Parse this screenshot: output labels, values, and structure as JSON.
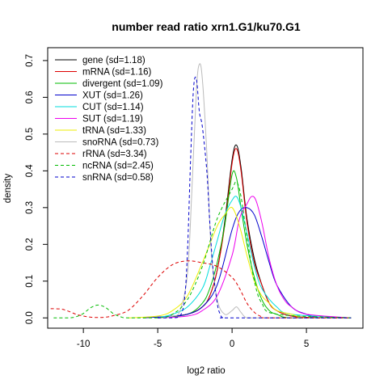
{
  "chart_data": {
    "type": "line",
    "title": "number read ratio xrn1.G1/ku70.G1",
    "xlabel": "log2 ratio",
    "ylabel": "density",
    "xlim": [
      -12.4,
      8.8
    ],
    "ylim": [
      -0.028,
      0.735
    ],
    "xticks": [
      -10,
      -5,
      0,
      5
    ],
    "yticks": [
      0.0,
      0.1,
      0.2,
      0.3,
      0.4,
      0.5,
      0.6,
      0.7
    ],
    "grid": false,
    "legend_position": "top-left",
    "series": [
      {
        "name": "gene (sd=1.18)",
        "color": "#000000",
        "dash": "solid",
        "x": [
          -5,
          -3,
          -2,
          -1.5,
          -1,
          -0.5,
          0,
          0.3,
          0.6,
          1,
          1.5,
          2,
          2.5,
          3,
          4,
          6,
          8
        ],
        "y": [
          0,
          0.01,
          0.03,
          0.06,
          0.13,
          0.26,
          0.43,
          0.47,
          0.41,
          0.27,
          0.16,
          0.09,
          0.04,
          0.02,
          0.005,
          0,
          0
        ]
      },
      {
        "name": "mRNA (sd=1.16)",
        "color": "#dd0000",
        "dash": "solid",
        "x": [
          -5,
          -3,
          -2,
          -1.5,
          -1,
          -0.5,
          0,
          0.3,
          0.6,
          1,
          1.5,
          2,
          2.5,
          3,
          4,
          6,
          8
        ],
        "y": [
          0,
          0.01,
          0.03,
          0.06,
          0.13,
          0.25,
          0.42,
          0.46,
          0.4,
          0.26,
          0.15,
          0.09,
          0.04,
          0.02,
          0.005,
          0,
          0
        ]
      },
      {
        "name": "divergent (sd=1.09)",
        "color": "#00bb00",
        "dash": "solid",
        "x": [
          -5,
          -3,
          -2,
          -1.5,
          -1,
          -0.5,
          0,
          0.3,
          0.6,
          1,
          1.5,
          2,
          2.5,
          3,
          4,
          8
        ],
        "y": [
          0,
          0.01,
          0.04,
          0.08,
          0.15,
          0.25,
          0.39,
          0.38,
          0.3,
          0.2,
          0.11,
          0.05,
          0.02,
          0.01,
          0,
          0
        ]
      },
      {
        "name": "XUT (sd=1.26)",
        "color": "#0000cc",
        "dash": "solid",
        "x": [
          -6,
          -4,
          -3,
          -2,
          -1,
          0,
          0.5,
          1,
          1.5,
          2,
          2.5,
          3,
          4,
          5,
          6,
          8
        ],
        "y": [
          0,
          0.005,
          0.01,
          0.03,
          0.09,
          0.24,
          0.29,
          0.3,
          0.28,
          0.22,
          0.15,
          0.09,
          0.03,
          0.01,
          0,
          0
        ]
      },
      {
        "name": "CUT (sd=1.14)",
        "color": "#00dddd",
        "dash": "solid",
        "x": [
          -5,
          -4,
          -3,
          -2,
          -1.5,
          -1,
          -0.5,
          0,
          0.3,
          0.6,
          1,
          1.5,
          2,
          3,
          4,
          8
        ],
        "y": [
          0,
          0.01,
          0.03,
          0.08,
          0.14,
          0.21,
          0.28,
          0.32,
          0.33,
          0.3,
          0.23,
          0.14,
          0.08,
          0.03,
          0.01,
          0
        ]
      },
      {
        "name": "SUT (sd=1.19)",
        "color": "#ee00ee",
        "dash": "solid",
        "x": [
          -5,
          -3,
          -2,
          -1,
          0,
          0.5,
          1,
          1.3,
          1.6,
          2,
          2.5,
          3,
          3.5,
          4,
          5,
          8
        ],
        "y": [
          0,
          0.005,
          0.02,
          0.06,
          0.17,
          0.27,
          0.31,
          0.33,
          0.32,
          0.26,
          0.16,
          0.09,
          0.05,
          0.03,
          0.01,
          0
        ]
      },
      {
        "name": "tRNA (sd=1.33)",
        "color": "#eeee00",
        "dash": "solid",
        "x": [
          -7,
          -5,
          -4,
          -3,
          -2,
          -1,
          -0.5,
          0,
          0.5,
          1,
          1.5,
          2,
          2.5,
          3,
          4,
          5,
          8
        ],
        "y": [
          0,
          0.005,
          0.02,
          0.06,
          0.15,
          0.25,
          0.28,
          0.3,
          0.25,
          0.17,
          0.1,
          0.06,
          0.04,
          0.02,
          0.01,
          0,
          0
        ]
      },
      {
        "name": "snoRNA (sd=0.73)",
        "color": "#bbbbbb",
        "dash": "solid",
        "x": [
          -5,
          -4,
          -3.5,
          -3,
          -2.7,
          -2.4,
          -2.2,
          -2,
          -1.7,
          -1.4,
          -1,
          -0.5,
          0,
          0.3,
          0.6,
          1,
          2,
          8
        ],
        "y": [
          0,
          0.005,
          0.02,
          0.12,
          0.35,
          0.62,
          0.69,
          0.65,
          0.45,
          0.18,
          0.05,
          0.01,
          0.02,
          0.03,
          0.015,
          0,
          0,
          0
        ]
      },
      {
        "name": "rRNA (sd=3.34)",
        "color": "#dd0000",
        "dash": "dashed",
        "x": [
          -12.2,
          -11.5,
          -11,
          -10.5,
          -10,
          -9.5,
          -9,
          -8.5,
          -8,
          -7,
          -6,
          -5,
          -4,
          -3,
          -2,
          -1,
          0,
          0.5,
          1,
          1.5,
          2,
          2.5,
          8
        ],
        "y": [
          0.025,
          0.024,
          0.018,
          0.01,
          0.005,
          0.002,
          0.001,
          0.002,
          0.006,
          0.02,
          0.06,
          0.11,
          0.145,
          0.155,
          0.15,
          0.14,
          0.11,
          0.08,
          0.04,
          0.015,
          0.003,
          0,
          0
        ]
      },
      {
        "name": "ncRNA (sd=2.45)",
        "color": "#00bb00",
        "dash": "dashed",
        "x": [
          -12,
          -11,
          -10.5,
          -10,
          -9.5,
          -9,
          -8.5,
          -8,
          -7.5,
          -7,
          -5,
          -4,
          -3,
          -2,
          -1,
          0,
          0.3,
          0.6,
          1,
          1.5,
          2,
          3,
          8
        ],
        "y": [
          0,
          0,
          0.003,
          0.012,
          0.028,
          0.035,
          0.028,
          0.012,
          0.003,
          0,
          0,
          0.01,
          0.05,
          0.14,
          0.27,
          0.35,
          0.37,
          0.33,
          0.22,
          0.1,
          0.04,
          0.01,
          0
        ]
      },
      {
        "name": "snRNA (sd=0.58)",
        "color": "#0000cc",
        "dash": "dashed",
        "x": [
          -5,
          -4,
          -3.5,
          -3.2,
          -3,
          -2.8,
          -2.6,
          -2.4,
          -2.2,
          -2,
          -1.7,
          -1.5,
          -1.3,
          -1,
          -0.8,
          -0.6,
          0,
          8
        ],
        "y": [
          0,
          0,
          0.005,
          0.05,
          0.18,
          0.42,
          0.62,
          0.65,
          0.56,
          0.52,
          0.4,
          0.26,
          0.14,
          0.04,
          0.01,
          0,
          0,
          0
        ]
      }
    ]
  }
}
